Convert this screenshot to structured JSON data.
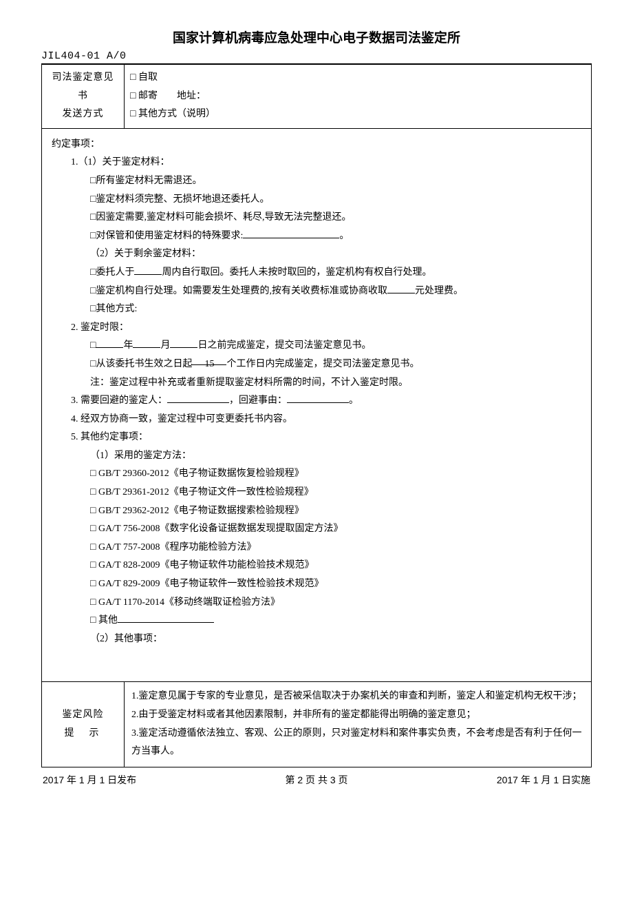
{
  "header": {
    "title": "国家计算机病毒应急处理中心电子数据司法鉴定所",
    "doc_code": "JIL404-01  A/0"
  },
  "delivery": {
    "label_line1": "司法鉴定意见书",
    "label_line2": "发送方式",
    "opt_pickup": "□ 自取",
    "opt_mail": "□ 邮寄　　地址：",
    "opt_other": "□ 其他方式（说明）"
  },
  "agreement": {
    "title": "约定事项：",
    "s1_head": "1.（1）关于鉴定材料：",
    "s1_a": "□所有鉴定材料无需退还。",
    "s1_b": "□鉴定材料须完整、无损坏地退还委托人。",
    "s1_c": "□因鉴定需要,鉴定材料可能会损坏、耗尽,导致无法完整退还。",
    "s1_d_pre": "□对保管和使用鉴定材料的特殊要求:",
    "s1_d_post": "。",
    "s1_2_head": "（2）关于剩余鉴定材料：",
    "s1_2_a_pre": "□委托人于",
    "s1_2_a_post": "周内自行取回。委托人未按时取回的，鉴定机构有权自行处理。",
    "s1_2_b_pre": "□鉴定机构自行处理。如需要发生处理费的,按有关收费标准或协商收取",
    "s1_2_b_post": "元处理费。",
    "s1_2_c": "□其他方式:",
    "s2_head": "2. 鉴定时限：",
    "s2_a_p1": "□",
    "s2_a_y": "年",
    "s2_a_m": "月",
    "s2_a_d": "日之前完成鉴定，提交司法鉴定意见书。",
    "s2_b_pre": "□从该委托书生效之日起",
    "s2_b_val": "15",
    "s2_b_post": "个工作日内完成鉴定，提交司法鉴定意见书。",
    "s2_note": "注：鉴定过程中补充或者重新提取鉴定材料所需的时间，不计入鉴定时限。",
    "s3_pre": "3. 需要回避的鉴定人：",
    "s3_mid": "，回避事由：",
    "s3_post": "。",
    "s4": "4. 经双方协商一致，鉴定过程中可变更委托书内容。",
    "s5_head": "5. 其他约定事项：",
    "s5_1_head": "（1）采用的鉴定方法：",
    "methods": [
      "□ GB/T 29360-2012《电子物证数据恢复检验规程》",
      "□ GB/T 29361-2012《电子物证文件一致性检验规程》",
      "□ GB/T 29362-2012《电子物证数据搜索检验规程》",
      "□ GA/T 756-2008《数字化设备证据数据发现提取固定方法》",
      "□ GA/T 757-2008《程序功能检验方法》",
      "□ GA/T 828-2009《电子物证软件功能检验技术规范》",
      "□ GA/T 829-2009《电子物证软件一致性检验技术规范》",
      "□ GA/T 1170-2014《移动终端取证检验方法》"
    ],
    "s5_other": "□ 其他",
    "s5_2_head": "（2）其他事项："
  },
  "risk": {
    "label_line1": "鉴定风险",
    "label_line2": "提　示",
    "r1": "1.鉴定意见属于专家的专业意见，是否被采信取决于办案机关的审查和判断，鉴定人和鉴定机构无权干涉；",
    "r2": "2.由于受鉴定材料或者其他因素限制，并非所有的鉴定都能得出明确的鉴定意见；",
    "r3": "3.鉴定活动遵循依法独立、客观、公正的原则，只对鉴定材料和案件事实负责，不会考虑是否有利于任何一方当事人。"
  },
  "footer": {
    "left": "2017 年 1 月 1 日发布",
    "center": "第 2 页 共 3 页",
    "right": "2017 年 1 月 1 日实施"
  }
}
